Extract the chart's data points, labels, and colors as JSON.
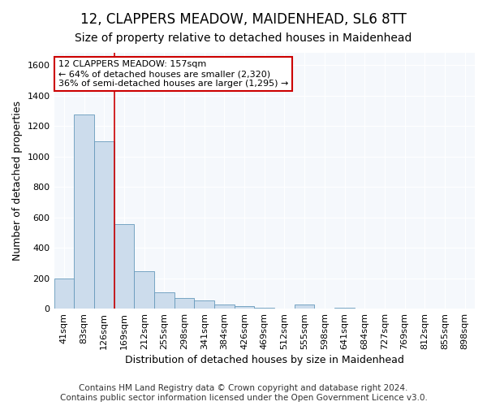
{
  "title": "12, CLAPPERS MEADOW, MAIDENHEAD, SL6 8TT",
  "subtitle": "Size of property relative to detached houses in Maidenhead",
  "xlabel": "Distribution of detached houses by size in Maidenhead",
  "ylabel": "Number of detached properties",
  "footer_line1": "Contains HM Land Registry data © Crown copyright and database right 2024.",
  "footer_line2": "Contains public sector information licensed under the Open Government Licence v3.0.",
  "bar_labels": [
    "41sqm",
    "83sqm",
    "126sqm",
    "169sqm",
    "212sqm",
    "255sqm",
    "298sqm",
    "341sqm",
    "384sqm",
    "426sqm",
    "469sqm",
    "512sqm",
    "555sqm",
    "598sqm",
    "641sqm",
    "684sqm",
    "727sqm",
    "769sqm",
    "812sqm",
    "855sqm",
    "898sqm"
  ],
  "bar_values": [
    195,
    1275,
    1100,
    555,
    248,
    108,
    72,
    52,
    28,
    18,
    8,
    3,
    28,
    3,
    5,
    0,
    0,
    0,
    0,
    0,
    0
  ],
  "bar_color": "#ccdcec",
  "bar_edge_color": "#6699bb",
  "property_line_x": 2.5,
  "property_line_color": "#cc0000",
  "annotation_line1": "12 CLAPPERS MEADOW: 157sqm",
  "annotation_line2": "← 64% of detached houses are smaller (2,320)",
  "annotation_line3": "36% of semi-detached houses are larger (1,295) →",
  "annotation_box_color": "#ffffff",
  "annotation_box_edge_color": "#cc0000",
  "ylim": [
    0,
    1680
  ],
  "yticks": [
    0,
    200,
    400,
    600,
    800,
    1000,
    1200,
    1400,
    1600
  ],
  "bg_color": "#ffffff",
  "plot_bg_color": "#f5f8fc",
  "title_fontsize": 12,
  "subtitle_fontsize": 10,
  "axis_label_fontsize": 9,
  "tick_fontsize": 8,
  "annotation_fontsize": 8,
  "footer_fontsize": 7.5
}
